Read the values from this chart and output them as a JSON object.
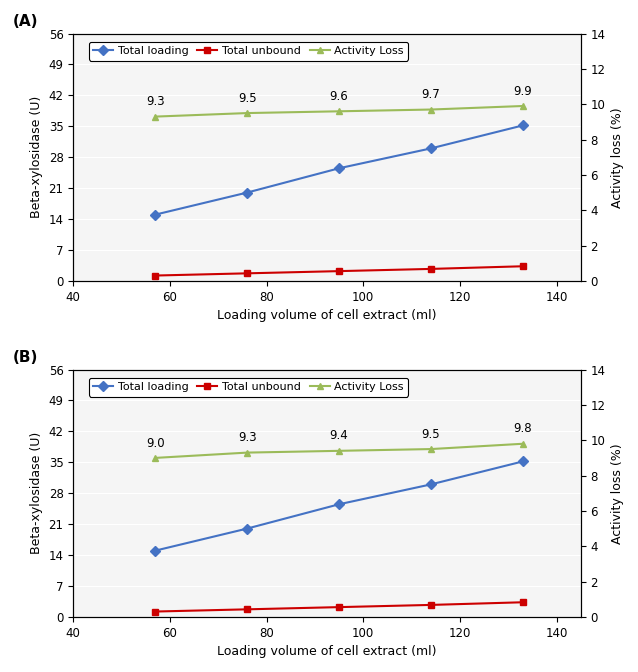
{
  "x": [
    57,
    76,
    95,
    114,
    133
  ],
  "A": {
    "total_loading": [
      15.0,
      20.0,
      25.5,
      30.0,
      35.2
    ],
    "total_unbound": [
      1.2,
      1.7,
      2.2,
      2.7,
      3.3
    ],
    "activity_loss": [
      9.3,
      9.5,
      9.6,
      9.7,
      9.9
    ],
    "activity_loss_labels": [
      "9.3",
      "9.5",
      "9.6",
      "9.7",
      "9.9"
    ]
  },
  "B": {
    "total_loading": [
      15.0,
      20.0,
      25.5,
      30.0,
      35.2
    ],
    "total_unbound": [
      1.2,
      1.7,
      2.2,
      2.7,
      3.3
    ],
    "activity_loss": [
      9.0,
      9.3,
      9.4,
      9.5,
      9.8
    ],
    "activity_loss_labels": [
      "9.0",
      "9.3",
      "9.4",
      "9.5",
      "9.8"
    ]
  },
  "xlim": [
    40,
    145
  ],
  "xticks": [
    40,
    60,
    80,
    100,
    120,
    140
  ],
  "ylim_left": [
    0,
    56
  ],
  "yticks_left": [
    0,
    7,
    14,
    21,
    28,
    35,
    42,
    49,
    56
  ],
  "ylim_right": [
    0,
    14
  ],
  "yticks_right": [
    0,
    2,
    4,
    6,
    8,
    10,
    12,
    14
  ],
  "xlabel": "Loading volume of cell extract (ml)",
  "ylabel_left": "Beta-xylosidase (U)",
  "ylabel_right": "Activity loss (%)",
  "legend_labels": [
    "Total loading",
    "Total unbound",
    "Activity Loss"
  ],
  "color_loading": "#4472C4",
  "color_unbound": "#CC0000",
  "color_activity": "#9BBB59",
  "panel_labels": [
    "(A)",
    "(B)"
  ],
  "bg_color": "#f5f5f5"
}
